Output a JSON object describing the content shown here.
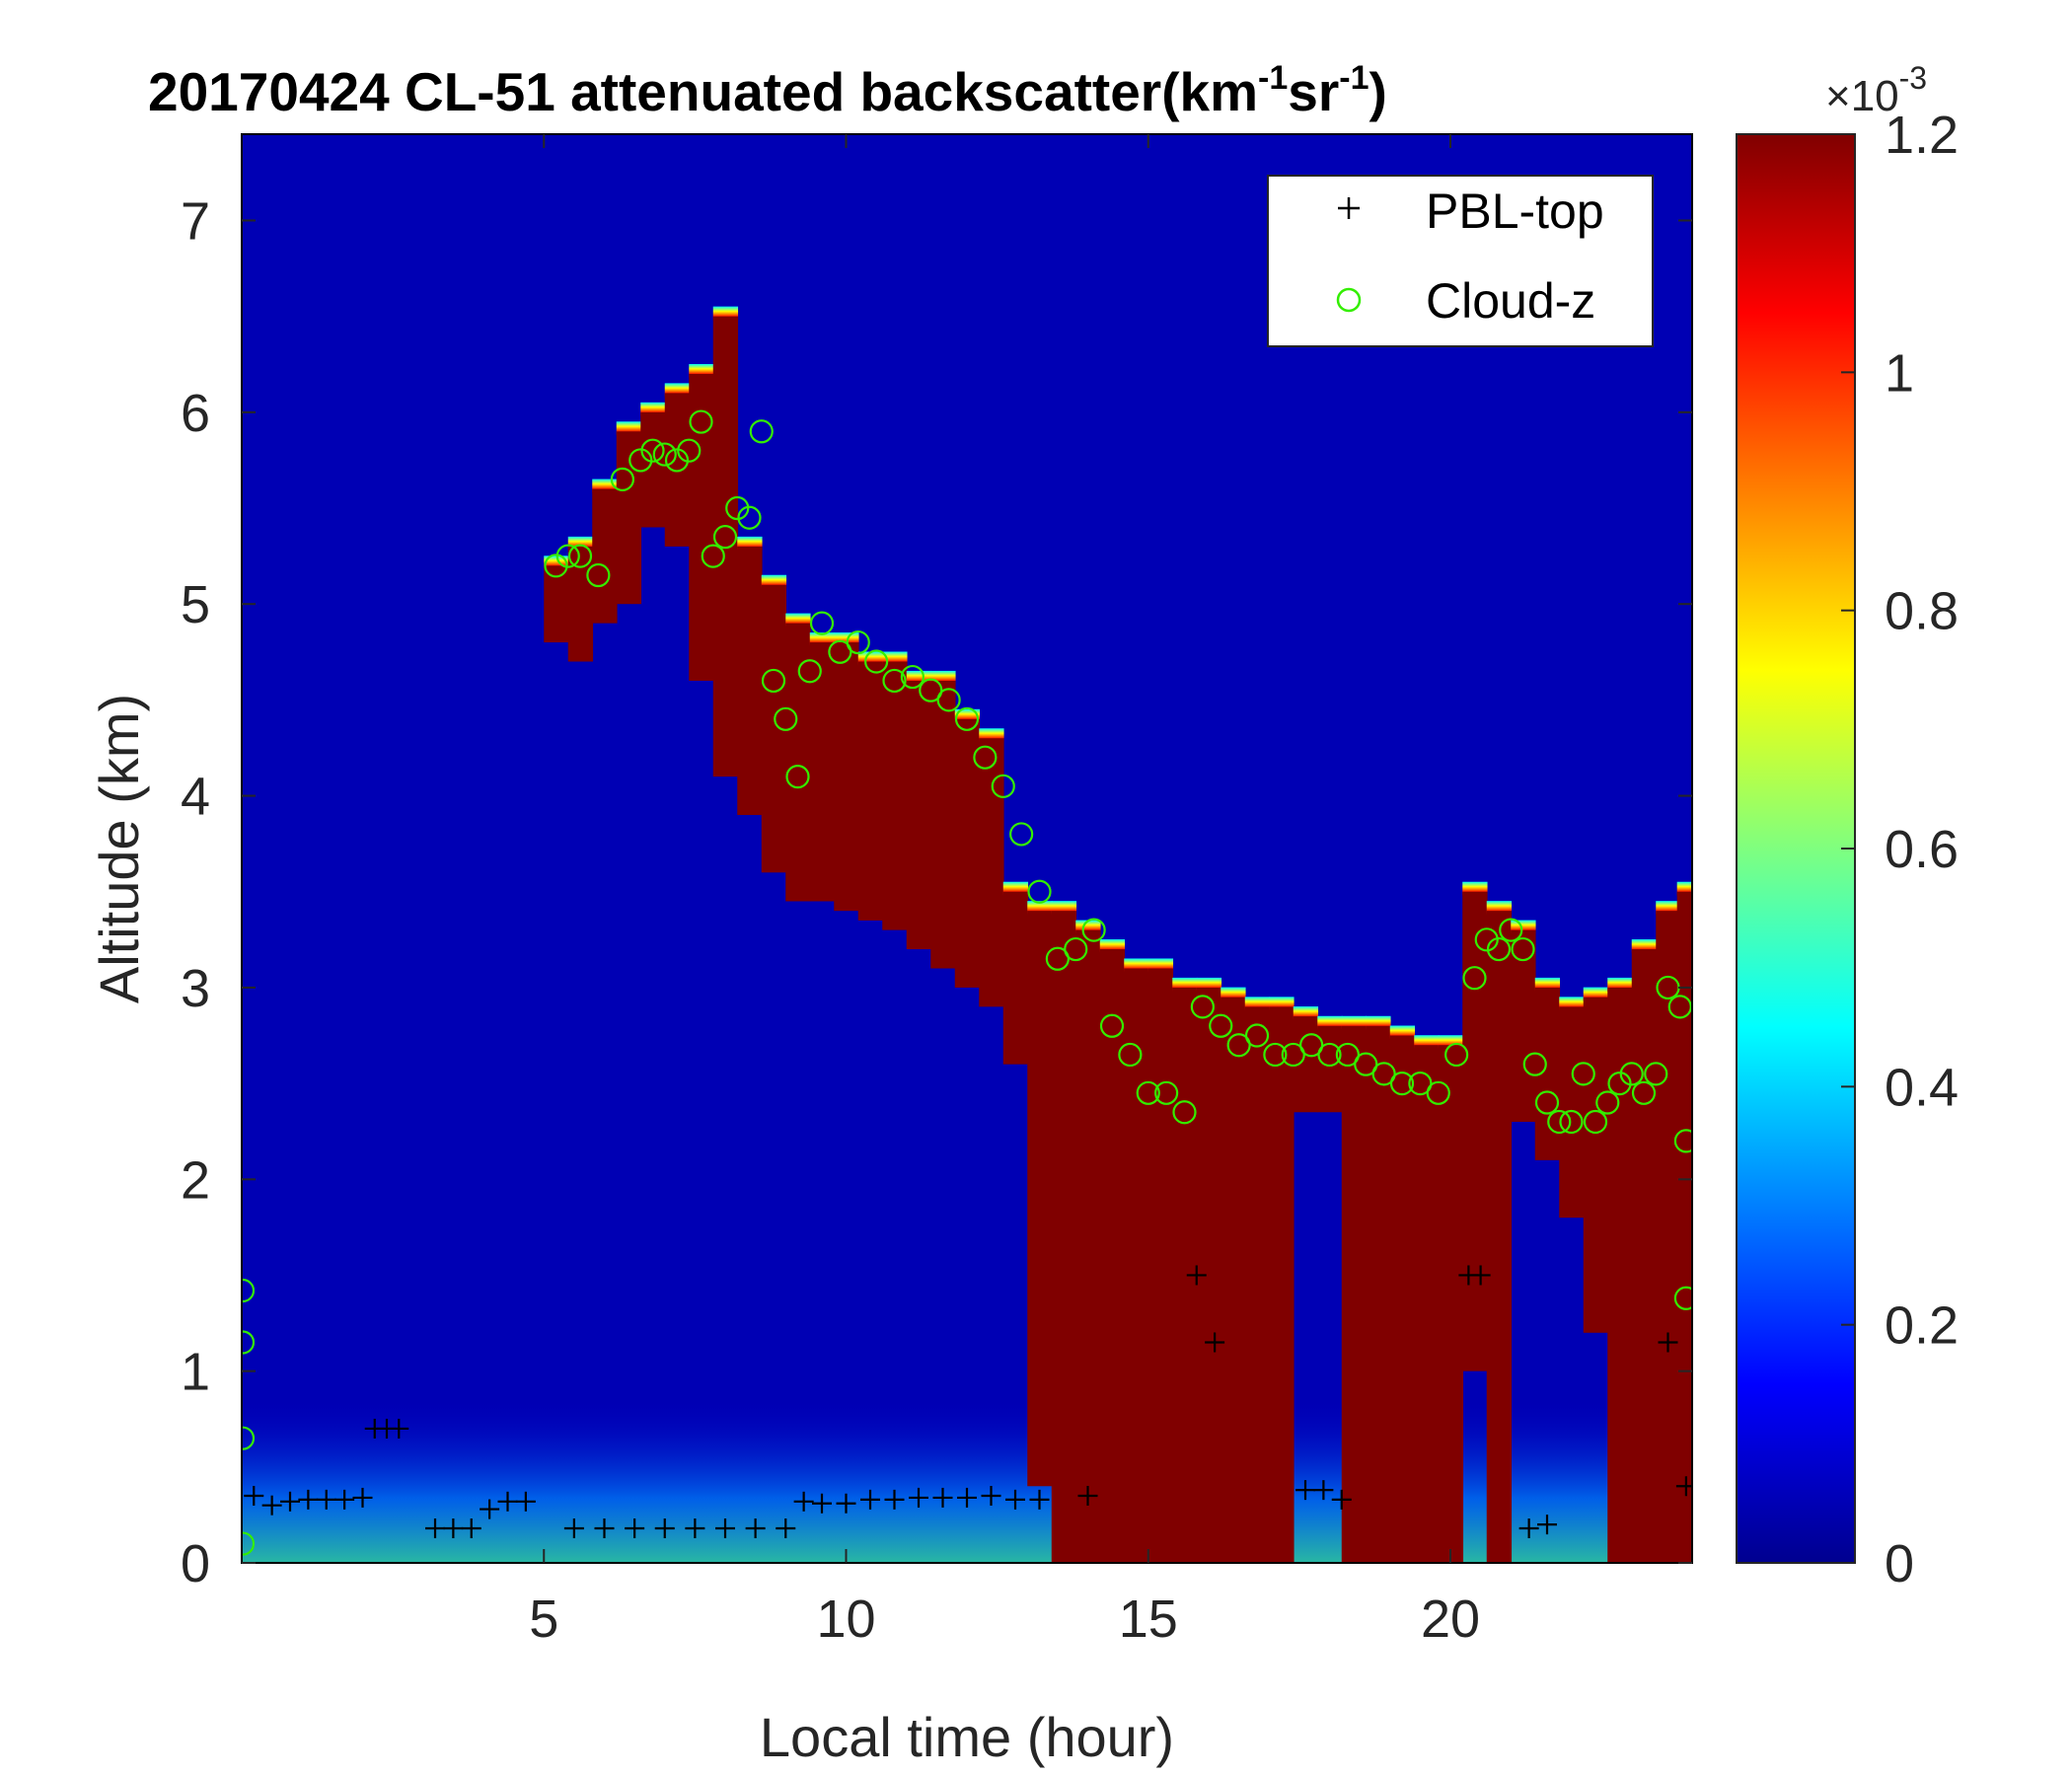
{
  "chart_data": {
    "type": "heatmap",
    "title": "20170424  CL-51 attenuated backscatter(km",
    "title_exp1": "-1",
    "title_mid": "sr",
    "title_exp2": "-1",
    "title_end": ")",
    "xlabel": "Local time (hour)",
    "ylabel": "Altitude (km)",
    "xlim": [
      0,
      24
    ],
    "ylim": [
      0,
      7.45
    ],
    "x_ticks": [
      5,
      10,
      15,
      20
    ],
    "y_ticks": [
      0,
      1,
      2,
      3,
      4,
      5,
      6,
      7
    ],
    "colorbar": {
      "min": 0,
      "max": 0.0012,
      "ticks": [
        0,
        0.2,
        0.4,
        0.6,
        0.8,
        1,
        1.2
      ],
      "tick_labels": [
        "0",
        "0.2",
        "0.4",
        "0.6",
        "0.8",
        "1",
        "1.2"
      ],
      "multiplier_base": "×10",
      "multiplier_exp": "-3",
      "colormap": "jet"
    },
    "legend": {
      "position": "top-right",
      "entries": [
        {
          "name": "PBL-top",
          "marker": "+",
          "color": "#000000"
        },
        {
          "name": "Cloud-z",
          "marker": "o",
          "color": "#33ee00"
        }
      ]
    },
    "cloud_layer": {
      "x": [
        5.2,
        5.6,
        6.0,
        6.4,
        6.8,
        7.2,
        7.6,
        8.0,
        8.4,
        8.8,
        9.2,
        9.6,
        10.0,
        10.4,
        10.8,
        11.2,
        11.6,
        12.0,
        12.4,
        12.8,
        13.2,
        13.6,
        14.0,
        14.4,
        14.8,
        15.2,
        15.6,
        16.0,
        16.4,
        16.8,
        17.2,
        17.6,
        18.0,
        18.4,
        18.8,
        19.2,
        19.6,
        20.0,
        20.4,
        20.8,
        21.2,
        21.6,
        22.0,
        22.4,
        22.8,
        23.2,
        23.6,
        23.9
      ],
      "top": [
        5.2,
        5.3,
        5.6,
        5.9,
        6.0,
        6.1,
        6.2,
        6.5,
        5.3,
        5.1,
        4.9,
        4.8,
        4.8,
        4.7,
        4.7,
        4.6,
        4.6,
        4.4,
        4.3,
        3.5,
        3.4,
        3.4,
        3.3,
        3.2,
        3.1,
        3.1,
        3.0,
        3.0,
        2.95,
        2.9,
        2.9,
        2.85,
        2.8,
        2.8,
        2.8,
        2.75,
        2.7,
        2.7,
        3.5,
        3.4,
        3.3,
        3.0,
        2.9,
        2.95,
        3.0,
        3.2,
        3.4,
        3.5
      ],
      "bottom": [
        4.8,
        4.7,
        4.9,
        5.0,
        5.4,
        5.3,
        4.6,
        4.1,
        3.9,
        3.6,
        3.45,
        3.45,
        3.4,
        3.35,
        3.3,
        3.2,
        3.1,
        3.0,
        2.9,
        2.6,
        0.4,
        0.0,
        0.0,
        0.0,
        0.0,
        0.0,
        0.0,
        0.0,
        0.0,
        0.0,
        0.0,
        2.35,
        2.35,
        0.0,
        0.0,
        0.0,
        0.0,
        0.0,
        1.0,
        0.0,
        2.3,
        2.1,
        1.8,
        1.2,
        0.0,
        0.0,
        0.0,
        0.0
      ]
    },
    "series": [
      {
        "name": "PBL-top",
        "x": [
          0.2,
          0.5,
          0.8,
          1.1,
          1.4,
          1.7,
          2.0,
          2.2,
          2.4,
          2.6,
          3.2,
          3.5,
          3.8,
          4.1,
          4.4,
          4.7,
          5.5,
          6.0,
          6.5,
          7.0,
          7.5,
          8.0,
          8.5,
          9.0,
          9.3,
          9.6,
          10.0,
          10.4,
          10.8,
          11.2,
          11.6,
          12.0,
          12.4,
          12.8,
          13.2,
          14.0,
          15.8,
          16.1,
          17.6,
          17.9,
          18.2,
          20.3,
          20.5,
          21.3,
          21.6,
          23.6,
          23.9
        ],
        "y": [
          0.35,
          0.3,
          0.32,
          0.33,
          0.33,
          0.33,
          0.34,
          0.7,
          0.7,
          0.7,
          0.18,
          0.18,
          0.18,
          0.28,
          0.32,
          0.32,
          0.18,
          0.18,
          0.18,
          0.18,
          0.18,
          0.18,
          0.18,
          0.18,
          0.32,
          0.31,
          0.31,
          0.33,
          0.33,
          0.34,
          0.34,
          0.34,
          0.35,
          0.33,
          0.33,
          0.35,
          1.5,
          1.15,
          0.38,
          0.38,
          0.33,
          1.5,
          1.5,
          0.18,
          0.2,
          1.15,
          0.4
        ]
      },
      {
        "name": "Cloud-z",
        "x": [
          0.0,
          0.0,
          0.0,
          0.0,
          5.2,
          5.4,
          5.6,
          5.9,
          6.3,
          6.6,
          6.8,
          7.0,
          7.2,
          7.4,
          7.6,
          7.8,
          8.0,
          8.2,
          8.4,
          8.6,
          8.8,
          9.0,
          9.2,
          9.4,
          9.6,
          9.9,
          10.2,
          10.5,
          10.8,
          11.1,
          11.4,
          11.7,
          12.0,
          12.3,
          12.6,
          12.9,
          13.2,
          13.5,
          13.8,
          14.1,
          14.4,
          14.7,
          15.0,
          15.3,
          15.6,
          15.9,
          16.2,
          16.5,
          16.8,
          17.1,
          17.4,
          17.7,
          18.0,
          18.3,
          18.6,
          18.9,
          19.2,
          19.5,
          19.8,
          20.1,
          20.4,
          20.6,
          20.8,
          21.0,
          21.2,
          21.4,
          21.6,
          21.8,
          22.0,
          22.2,
          22.4,
          22.6,
          22.8,
          23.0,
          23.2,
          23.4,
          23.6,
          23.8,
          23.9,
          23.9
        ],
        "y": [
          1.42,
          1.15,
          0.65,
          0.1,
          5.2,
          5.25,
          5.25,
          5.15,
          5.65,
          5.75,
          5.8,
          5.78,
          5.75,
          5.8,
          5.95,
          5.25,
          5.35,
          5.5,
          5.45,
          5.9,
          4.6,
          4.4,
          4.1,
          4.65,
          4.9,
          4.75,
          4.8,
          4.7,
          4.6,
          4.62,
          4.55,
          4.5,
          4.4,
          4.2,
          4.05,
          3.8,
          3.5,
          3.15,
          3.2,
          3.3,
          2.8,
          2.65,
          2.45,
          2.45,
          2.35,
          2.9,
          2.8,
          2.7,
          2.75,
          2.65,
          2.65,
          2.7,
          2.65,
          2.65,
          2.6,
          2.55,
          2.5,
          2.5,
          2.45,
          2.65,
          3.05,
          3.25,
          3.2,
          3.3,
          3.2,
          2.6,
          2.4,
          2.3,
          2.3,
          2.55,
          2.3,
          2.4,
          2.5,
          2.55,
          2.45,
          2.55,
          3.0,
          2.9,
          2.2,
          1.38
        ]
      }
    ]
  }
}
